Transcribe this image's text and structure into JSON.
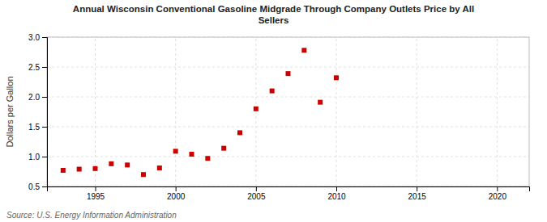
{
  "chart_data": {
    "type": "scatter",
    "title": "Annual Wisconsin Conventional Gasoline Midgrade Through Company Outlets Price by All\nSellers",
    "ylabel": "Dollars per Gallon",
    "source": "Source: U.S. Energy Information Administration",
    "x": [
      1993,
      1994,
      1995,
      1996,
      1997,
      1998,
      1999,
      2000,
      2001,
      2002,
      2003,
      2004,
      2005,
      2006,
      2007,
      2008,
      2009,
      2010
    ],
    "values": [
      0.77,
      0.79,
      0.8,
      0.88,
      0.86,
      0.7,
      0.81,
      1.09,
      1.04,
      0.97,
      1.14,
      1.4,
      1.8,
      2.1,
      2.39,
      2.78,
      1.91,
      2.32
    ],
    "color": "#cc0000",
    "marker": "square",
    "xlim": [
      1992,
      2022
    ],
    "ylim": [
      0.5,
      3.0
    ],
    "xticks": [
      1995,
      2000,
      2005,
      2010,
      2015,
      2020
    ],
    "yticks": [
      0.5,
      {
        "value": 1.0,
        "label": "1.0"
      },
      1.5,
      {
        "value": 2.0,
        "label": "2.0"
      },
      2.5,
      {
        "value": 3.0,
        "label": "3.0"
      }
    ],
    "grid": true
  }
}
